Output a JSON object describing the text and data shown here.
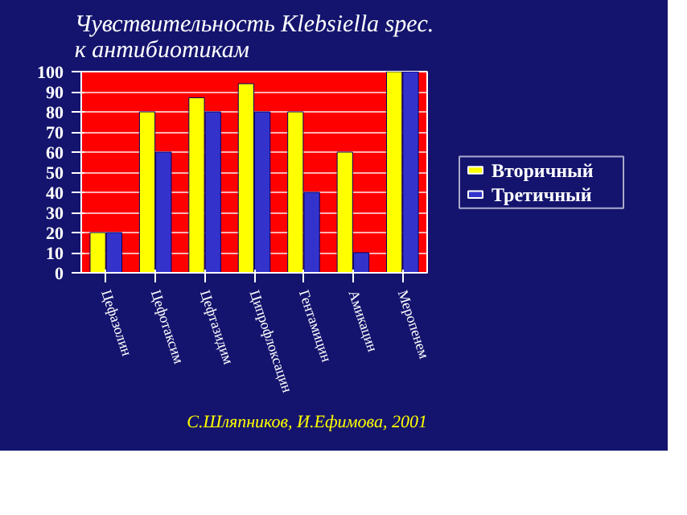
{
  "chart_data": {
    "type": "bar",
    "title": "Чувствительность Klebsiella spec.\nк антибиотикам",
    "categories": [
      "Цефазолин",
      "Цефотаксим",
      "Цефтазидим",
      "Ципрофлоксацин",
      "Гентамицин",
      "Амикацин",
      "Меропенем"
    ],
    "series": [
      {
        "name": "Вторичный",
        "color": "#ffff00",
        "values": [
          20,
          80,
          87,
          94,
          80,
          60,
          100
        ]
      },
      {
        "name": "Третичный",
        "color": "#3333cc",
        "values": [
          20,
          60,
          80,
          80,
          40,
          10,
          100
        ]
      }
    ],
    "ylim": [
      0,
      100
    ],
    "yticks": [
      0,
      10,
      20,
      30,
      40,
      50,
      60,
      70,
      80,
      90,
      100
    ],
    "grid": "y",
    "legend": "right",
    "annotations": [
      "С.Шляпников, И.Ефимова, 2001"
    ]
  }
}
